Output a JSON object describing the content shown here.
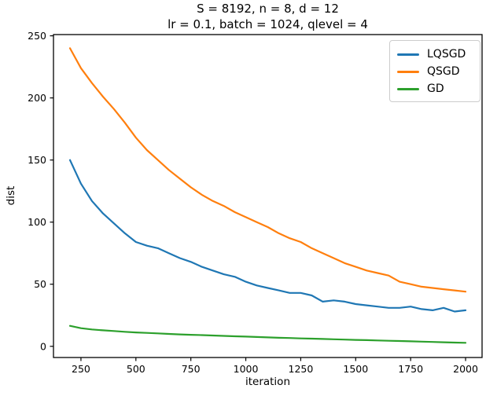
{
  "chart_data": {
    "type": "line",
    "title_line1": "S = 8192, n = 8, d = 12",
    "title_line2": "lr = 0.1, batch = 1024, qlevel = 4",
    "xlabel": "iteration",
    "ylabel": "dist",
    "xlim": [
      125,
      2075
    ],
    "ylim": [
      -9,
      251
    ],
    "xticks": [
      250,
      500,
      750,
      1000,
      1250,
      1500,
      1750,
      2000
    ],
    "yticks": [
      0,
      50,
      100,
      150,
      200,
      250
    ],
    "grid": false,
    "legend_position": "upper right",
    "axis_color": "#000000",
    "x": [
      200,
      250,
      300,
      350,
      400,
      450,
      500,
      550,
      600,
      650,
      700,
      750,
      800,
      850,
      900,
      950,
      1000,
      1050,
      1100,
      1150,
      1200,
      1250,
      1300,
      1350,
      1400,
      1450,
      1500,
      1550,
      1600,
      1650,
      1700,
      1750,
      1800,
      1850,
      1900,
      1950,
      2000
    ],
    "series": [
      {
        "name": "LQSGD",
        "color": "#1f77b4",
        "values": [
          150,
          131,
          117,
          107,
          99,
          91,
          84,
          81,
          79,
          75,
          71,
          68,
          64,
          61,
          58,
          56,
          52,
          49,
          47,
          45,
          43,
          43,
          41,
          36,
          37,
          36,
          34,
          33,
          32,
          31,
          31,
          32,
          30,
          29,
          31,
          28,
          29
        ]
      },
      {
        "name": "QSGD",
        "color": "#ff7f0e",
        "values": [
          240,
          224,
          212,
          201,
          191,
          180,
          168,
          158,
          150,
          142,
          135,
          128,
          122,
          117,
          113,
          108,
          104,
          100,
          96,
          91,
          87,
          84,
          79,
          75,
          71,
          67,
          64,
          61,
          59,
          57,
          52,
          50,
          48,
          47,
          46,
          45,
          44
        ]
      },
      {
        "name": "GD",
        "color": "#2ca02c",
        "values": [
          16.5,
          14.6,
          13.6,
          12.9,
          12.3,
          11.7,
          11.2,
          10.8,
          10.4,
          10,
          9.6,
          9.3,
          9,
          8.7,
          8.4,
          8.1,
          7.8,
          7.5,
          7.2,
          6.9,
          6.7,
          6.4,
          6.2,
          5.9,
          5.7,
          5.4,
          5.2,
          5,
          4.7,
          4.5,
          4.3,
          4,
          3.8,
          3.5,
          3.3,
          3,
          2.8
        ]
      }
    ]
  }
}
